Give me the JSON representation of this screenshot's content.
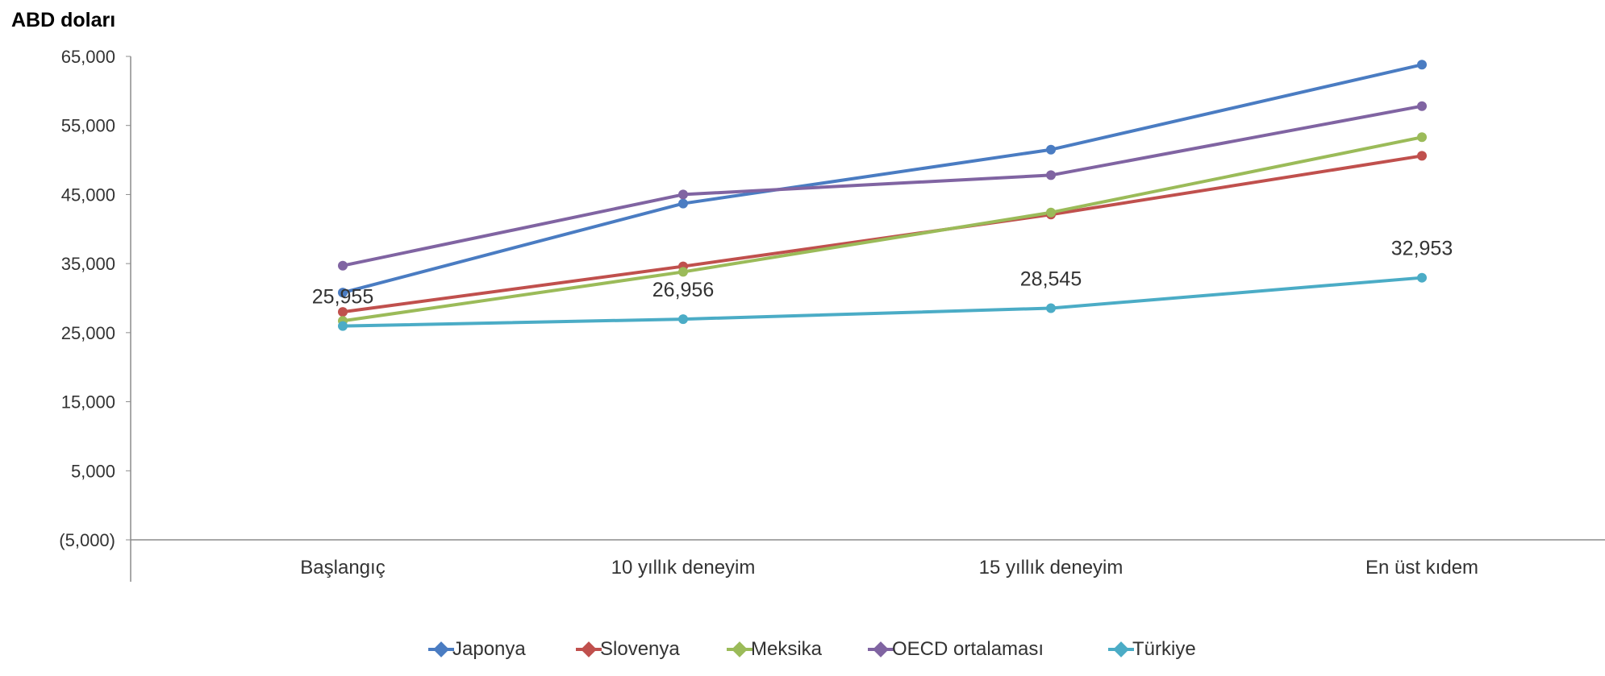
{
  "chart_data": {
    "type": "line",
    "ylabel": "ABD doları",
    "categories": [
      "Başlangıç",
      "10 yıllık deneyim",
      "15 yıllık deneyim",
      "En üst kıdem"
    ],
    "ylim": [
      -5000,
      65000
    ],
    "ytick_values": [
      -5000,
      5000,
      15000,
      25000,
      35000,
      45000,
      55000,
      65000
    ],
    "ytick_labels": [
      "(5,000)",
      "5,000",
      "15,000",
      "25,000",
      "35,000",
      "45,000",
      "55,000",
      "65,000"
    ],
    "grid": false,
    "legend_position": "bottom",
    "series": [
      {
        "name": "Japonya",
        "color": "#4a7cc2",
        "values": [
          30800,
          43700,
          51500,
          63800
        ]
      },
      {
        "name": "Slovenya",
        "color": "#c0504d",
        "values": [
          28000,
          34600,
          42100,
          50600
        ]
      },
      {
        "name": "Meksika",
        "color": "#9bbb59",
        "values": [
          26700,
          33800,
          42400,
          53300
        ]
      },
      {
        "name": "OECD ortalaması",
        "color": "#8064a2",
        "values": [
          34700,
          45000,
          47800,
          57800
        ]
      },
      {
        "name": "Türkiye",
        "color": "#4bacc6",
        "values": [
          25955,
          26956,
          28545,
          32953
        ]
      }
    ],
    "annotations": [
      {
        "series": "Türkiye",
        "index": 0,
        "text": "25,955"
      },
      {
        "series": "Türkiye",
        "index": 1,
        "text": "26,956"
      },
      {
        "series": "Türkiye",
        "index": 2,
        "text": "28,545"
      },
      {
        "series": "Türkiye",
        "index": 3,
        "text": "32,953"
      }
    ]
  }
}
